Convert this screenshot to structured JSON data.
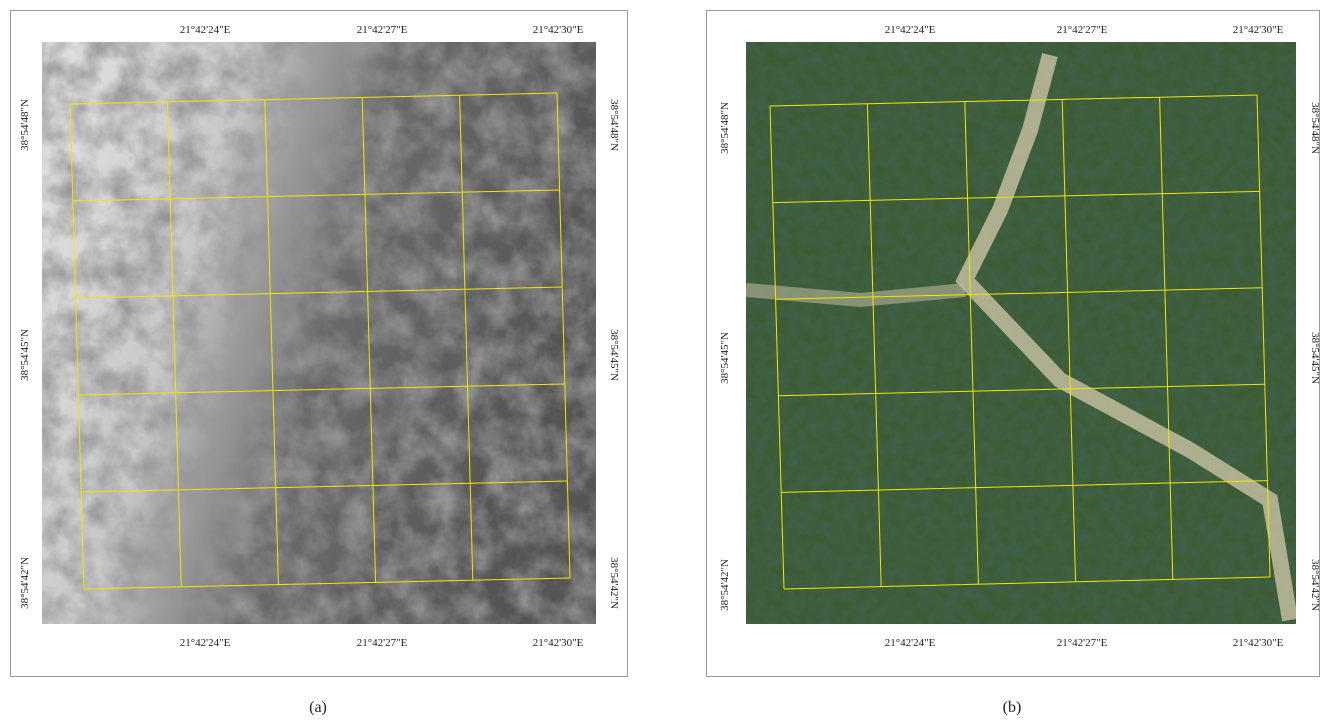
{
  "panels": [
    {
      "caption": "(a)",
      "top_labels": [
        "21°42'24\"E",
        "21°42'27\"E",
        "21°42'30\"E"
      ],
      "bottom_labels": [
        "21°42'24\"E",
        "21°42'27\"E",
        "21°42'30\"E"
      ],
      "left_labels": [
        "38°54'48\"N",
        "38°54'45\"N",
        "38°54'42\"N"
      ],
      "right_labels": [
        "38°54'48\"N",
        "38°54'45\"N",
        "38°54'42\"N"
      ]
    },
    {
      "caption": "(b)",
      "top_labels": [
        "21°42'24\"E",
        "21°42'27\"E",
        "21°42'30\"E"
      ],
      "bottom_labels": [
        "21°42'24\"E",
        "21°42'27\"E",
        "21°42'30\"E"
      ],
      "left_labels": [
        "38°54'48\"N",
        "38°54'45\"N",
        "38°54'42\"N"
      ],
      "right_labels": [
        "38°54'48\"N",
        "38°54'45\"N",
        "38°54'42\"N"
      ]
    }
  ]
}
